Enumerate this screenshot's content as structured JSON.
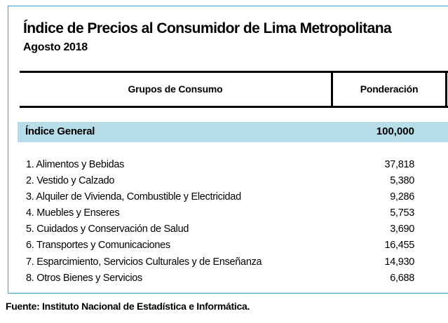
{
  "title": "Índice de Precios al Consumidor de Lima Metropolitana",
  "subtitle": "Agosto 2018",
  "table": {
    "headers": [
      "Grupos de Consumo",
      "Ponderación"
    ],
    "general": {
      "label": "Índice General",
      "value": "100,000"
    },
    "rows": [
      {
        "label": "1. Alimentos y Bebidas",
        "value": "37,818"
      },
      {
        "label": "2. Vestido y Calzado",
        "value": "5,380"
      },
      {
        "label": "3. Alquiler de Vivienda, Combustible y Electricidad",
        "value": "9,286"
      },
      {
        "label": "4. Muebles y Enseres",
        "value": "5,753"
      },
      {
        "label": "5. Cuidados y Conservación de Salud",
        "value": "3,690"
      },
      {
        "label": "6. Transportes y Comunicaciones",
        "value": "16,455"
      },
      {
        "label": "7. Esparcimiento, Servicios Culturales y de Enseñanza",
        "value": "14,930"
      },
      {
        "label": "8. Otros Bienes y Servicios",
        "value": "6,688"
      }
    ]
  },
  "source": "Fuente: Instituto Nacional de Estadística e Informática.",
  "colors": {
    "border": "#3aa0d8",
    "highlight_row": "#b7dde8"
  }
}
